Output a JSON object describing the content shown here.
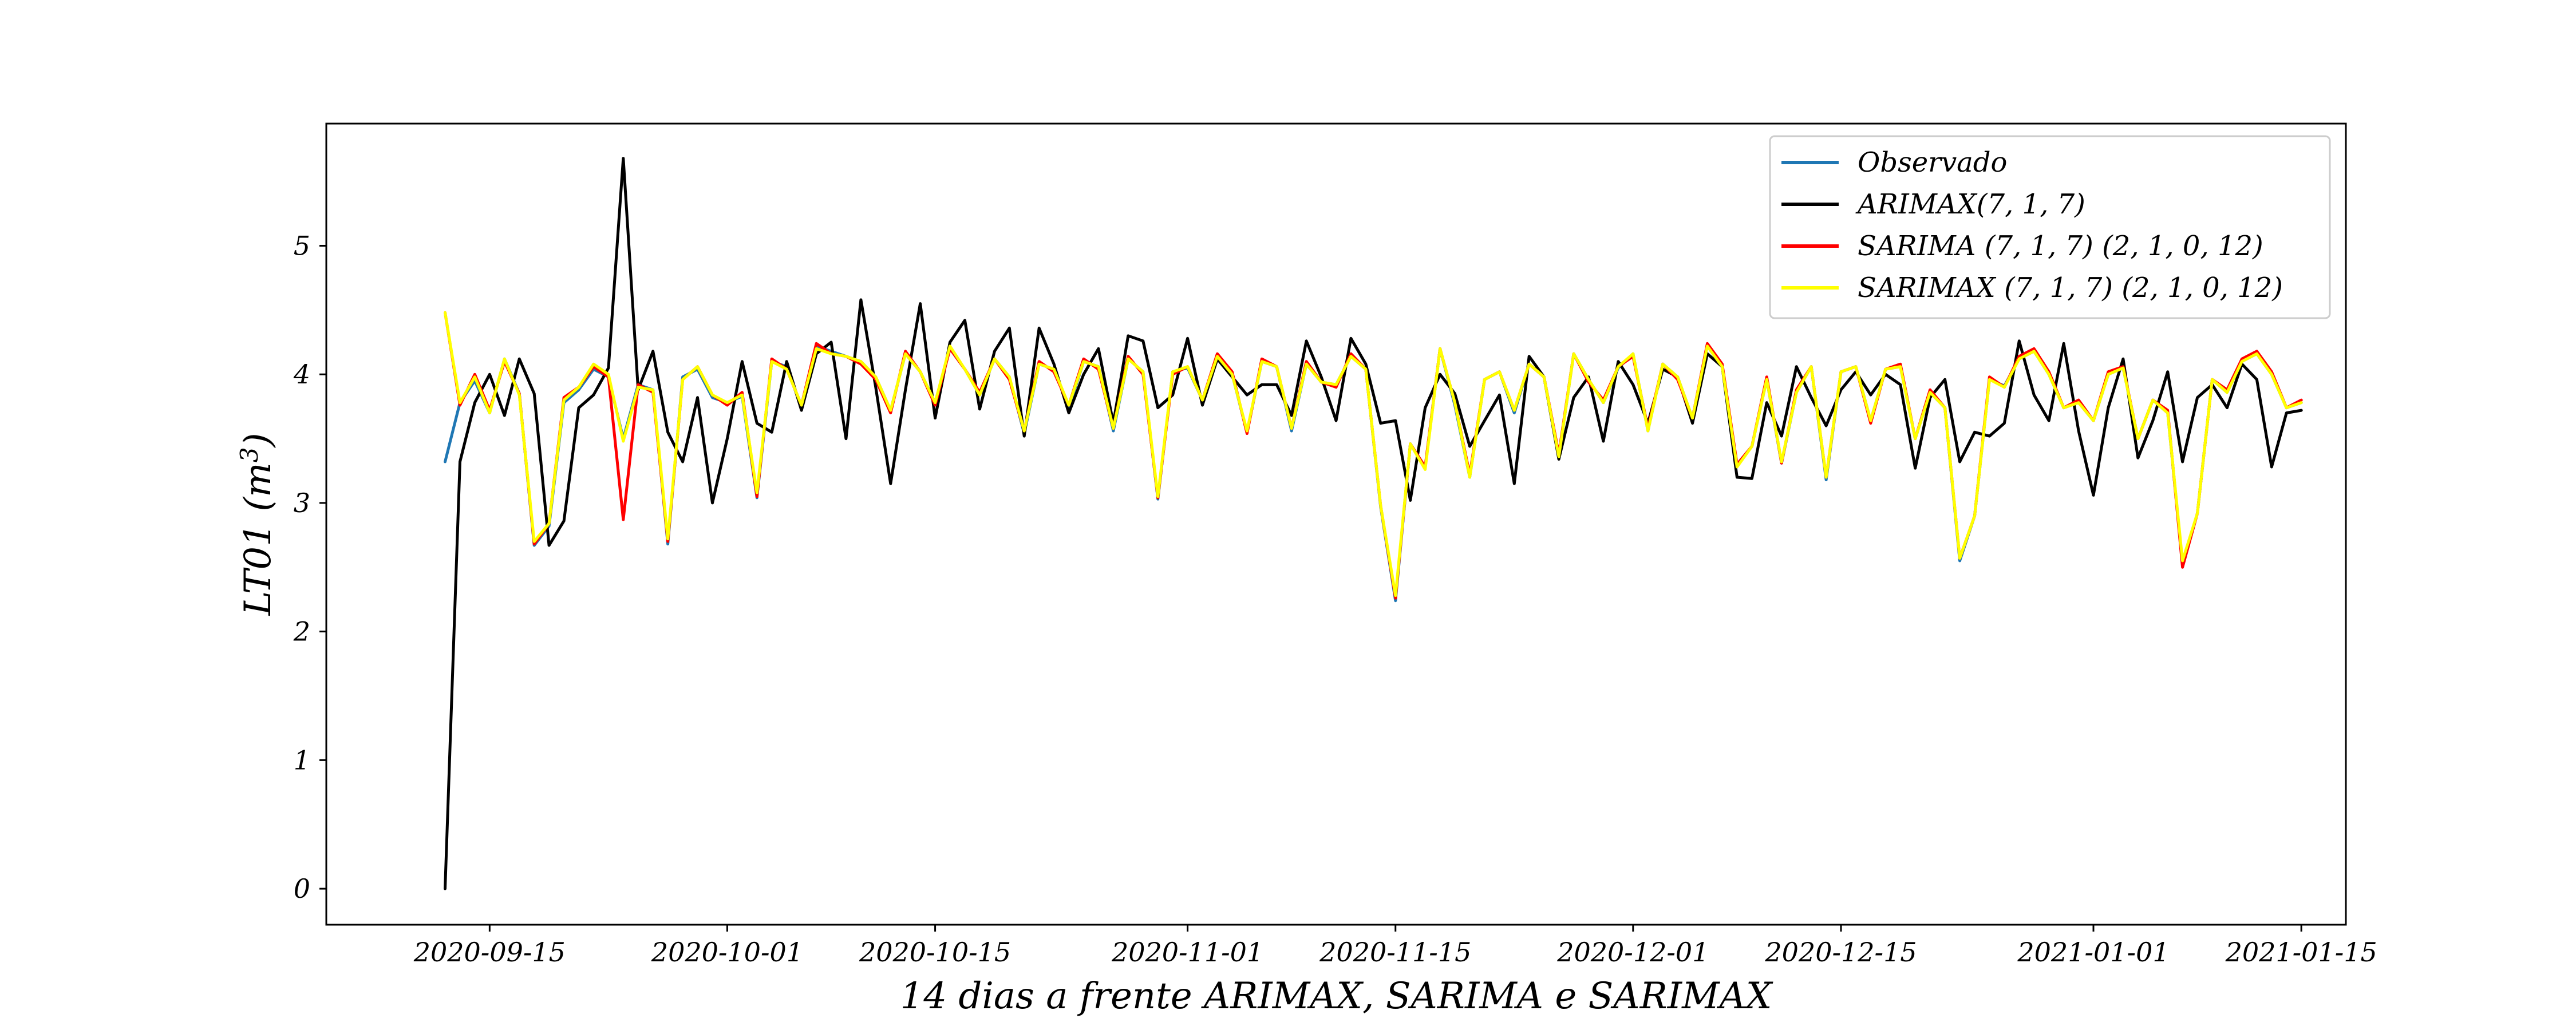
{
  "chart_data": {
    "type": "line",
    "title": "",
    "xlabel": "14 dias a frente ARIMAX, SARIMA e SARIMAX",
    "ylabel": "LT01 (m³)",
    "ylabel_parts": {
      "main": "LT01 (m",
      "sup": "3",
      "close": ")"
    },
    "xlim": [
      "2020-09-04",
      "2021-01-18"
    ],
    "ylim": [
      -0.28,
      5.95
    ],
    "xticks": [
      "2020-09-15",
      "2020-10-01",
      "2020-10-15",
      "2020-11-01",
      "2020-11-15",
      "2020-12-01",
      "2020-12-15",
      "2021-01-01",
      "2021-01-15"
    ],
    "yticks": [
      0,
      1,
      2,
      3,
      4,
      5
    ],
    "grid": false,
    "legend_position": "top-right",
    "start_date": "2020-09-12",
    "series": [
      {
        "name": "Observado",
        "color": "#1f77b4",
        "values": [
          3.32,
          3.78,
          3.95,
          3.7,
          4.12,
          3.85,
          2.67,
          2.82,
          3.78,
          3.88,
          4.04,
          3.98,
          3.5,
          3.92,
          3.88,
          2.68,
          3.98,
          4.04,
          3.82,
          3.78,
          3.83,
          3.04,
          4.1,
          4.06,
          3.74,
          4.22,
          4.18,
          4.14,
          4.1,
          3.98,
          3.72,
          4.16,
          4.02,
          3.78,
          4.2,
          4.04,
          3.84,
          4.12,
          3.98,
          3.54,
          4.08,
          4.04,
          3.74,
          4.1,
          4.06,
          3.56,
          4.12,
          4.02,
          3.03,
          4.02,
          4.05,
          3.8,
          4.14,
          4.0,
          3.55,
          4.1,
          4.06,
          3.56,
          4.08,
          3.94,
          3.92,
          4.14,
          4.04,
          2.97,
          2.24,
          3.46,
          3.27,
          4.2,
          3.76,
          3.2,
          3.96,
          4.02,
          3.7,
          4.08,
          3.98,
          3.36,
          4.16,
          3.96,
          3.78,
          4.05,
          4.16,
          3.56,
          4.08,
          3.98,
          3.66,
          4.22,
          4.06,
          3.29,
          3.44,
          3.96,
          3.31,
          3.86,
          4.06,
          3.18,
          4.02,
          4.06,
          3.64,
          4.04,
          4.06,
          3.5,
          3.86,
          3.74,
          2.55,
          2.9,
          3.96,
          3.91,
          4.12,
          4.18,
          4.0,
          3.74,
          3.78,
          3.64,
          4.0,
          4.05,
          3.5,
          3.8,
          3.7,
          2.53,
          2.92,
          3.96,
          3.86,
          4.1,
          4.16,
          4.0,
          3.74,
          3.78
        ]
      },
      {
        "name": "ARIMAX(7, 1, 7)",
        "color": "#000000",
        "values": [
          0.0,
          3.32,
          3.78,
          4.0,
          3.68,
          4.12,
          3.85,
          2.67,
          2.86,
          3.74,
          3.84,
          4.05,
          5.68,
          3.88,
          4.18,
          3.55,
          3.32,
          3.82,
          3.0,
          3.5,
          4.1,
          3.62,
          3.55,
          4.1,
          3.72,
          4.16,
          4.25,
          3.5,
          4.58,
          3.9,
          3.15,
          3.88,
          4.55,
          3.66,
          4.25,
          4.42,
          3.73,
          4.18,
          4.36,
          3.52,
          4.36,
          4.08,
          3.7,
          4.0,
          4.2,
          3.62,
          4.3,
          4.26,
          3.74,
          3.84,
          4.28,
          3.76,
          4.12,
          3.98,
          3.84,
          3.92,
          3.92,
          3.68,
          4.26,
          3.98,
          3.64,
          4.28,
          4.08,
          3.62,
          3.64,
          3.02,
          3.74,
          4.0,
          3.85,
          3.44,
          3.64,
          3.84,
          3.15,
          4.14,
          3.98,
          3.34,
          3.82,
          3.98,
          3.48,
          4.1,
          3.92,
          3.62,
          4.04,
          3.98,
          3.62,
          4.16,
          4.06,
          3.2,
          3.19,
          3.78,
          3.52,
          4.06,
          3.82,
          3.6,
          3.88,
          4.02,
          3.84,
          4.0,
          3.92,
          3.27,
          3.82,
          3.96,
          3.32,
          3.55,
          3.52,
          3.62,
          4.26,
          3.84,
          3.64,
          4.24,
          3.56,
          3.06,
          3.74,
          4.12,
          3.35,
          3.64,
          4.02,
          3.32,
          3.82,
          3.92,
          3.74,
          4.08,
          3.96,
          3.28,
          3.7,
          3.72
        ]
      },
      {
        "name": "SARIMA (7, 1, 7) (2, 1, 0, 12)",
        "color": "#ff0000",
        "values": [
          4.48,
          3.76,
          4.0,
          3.72,
          4.1,
          3.85,
          2.68,
          2.84,
          3.82,
          3.9,
          4.06,
          3.98,
          2.87,
          3.92,
          3.86,
          2.7,
          3.96,
          4.06,
          3.84,
          3.76,
          3.86,
          3.05,
          4.12,
          4.04,
          3.76,
          4.24,
          4.16,
          4.14,
          4.08,
          3.96,
          3.7,
          4.18,
          4.02,
          3.76,
          4.2,
          4.04,
          3.86,
          4.12,
          3.96,
          3.56,
          4.1,
          4.02,
          3.76,
          4.12,
          4.04,
          3.58,
          4.14,
          4.0,
          3.04,
          4.0,
          4.06,
          3.8,
          4.16,
          4.02,
          3.54,
          4.12,
          4.06,
          3.58,
          4.1,
          3.94,
          3.9,
          4.16,
          4.04,
          2.98,
          2.26,
          3.46,
          3.28,
          4.2,
          3.78,
          3.22,
          3.96,
          4.02,
          3.72,
          4.08,
          3.98,
          3.38,
          4.16,
          3.94,
          3.8,
          4.06,
          4.14,
          3.58,
          4.08,
          3.96,
          3.66,
          4.24,
          4.08,
          3.3,
          3.44,
          3.98,
          3.31,
          3.88,
          4.06,
          3.2,
          4.02,
          4.06,
          3.62,
          4.04,
          4.08,
          3.5,
          3.88,
          3.74,
          2.57,
          2.9,
          3.98,
          3.9,
          4.14,
          4.2,
          4.02,
          3.74,
          3.8,
          3.64,
          4.02,
          4.06,
          3.5,
          3.8,
          3.72,
          2.5,
          2.92,
          3.96,
          3.88,
          4.12,
          4.18,
          4.02,
          3.74,
          3.8
        ]
      },
      {
        "name": "SARIMAX (7, 1, 7) (2, 1, 0, 12)",
        "color": "#ffff00",
        "values": [
          4.48,
          3.78,
          3.98,
          3.7,
          4.12,
          3.84,
          2.7,
          2.84,
          3.8,
          3.9,
          4.08,
          4.0,
          3.48,
          3.9,
          3.88,
          2.72,
          3.96,
          4.06,
          3.84,
          3.78,
          3.84,
          3.08,
          4.1,
          4.04,
          3.76,
          4.2,
          4.16,
          4.14,
          4.1,
          3.98,
          3.72,
          4.16,
          4.02,
          3.78,
          4.22,
          4.04,
          3.84,
          4.12,
          3.98,
          3.56,
          4.08,
          4.04,
          3.76,
          4.1,
          4.06,
          3.58,
          4.12,
          4.02,
          3.05,
          4.02,
          4.06,
          3.8,
          4.14,
          4.0,
          3.56,
          4.1,
          4.06,
          3.58,
          4.08,
          3.94,
          3.92,
          4.14,
          4.04,
          2.98,
          2.28,
          3.46,
          3.26,
          4.2,
          3.78,
          3.2,
          3.96,
          4.02,
          3.72,
          4.08,
          3.98,
          3.36,
          4.16,
          3.96,
          3.78,
          4.06,
          4.16,
          3.56,
          4.08,
          3.98,
          3.66,
          4.22,
          4.06,
          3.28,
          3.44,
          3.96,
          3.32,
          3.86,
          4.06,
          3.2,
          4.02,
          4.06,
          3.64,
          4.04,
          4.06,
          3.5,
          3.86,
          3.74,
          2.57,
          2.9,
          3.96,
          3.9,
          4.12,
          4.18,
          4.0,
          3.74,
          3.78,
          3.64,
          4.0,
          4.05,
          3.5,
          3.8,
          3.7,
          2.55,
          2.92,
          3.96,
          3.86,
          4.1,
          4.16,
          4.0,
          3.74,
          3.78
        ]
      }
    ]
  }
}
